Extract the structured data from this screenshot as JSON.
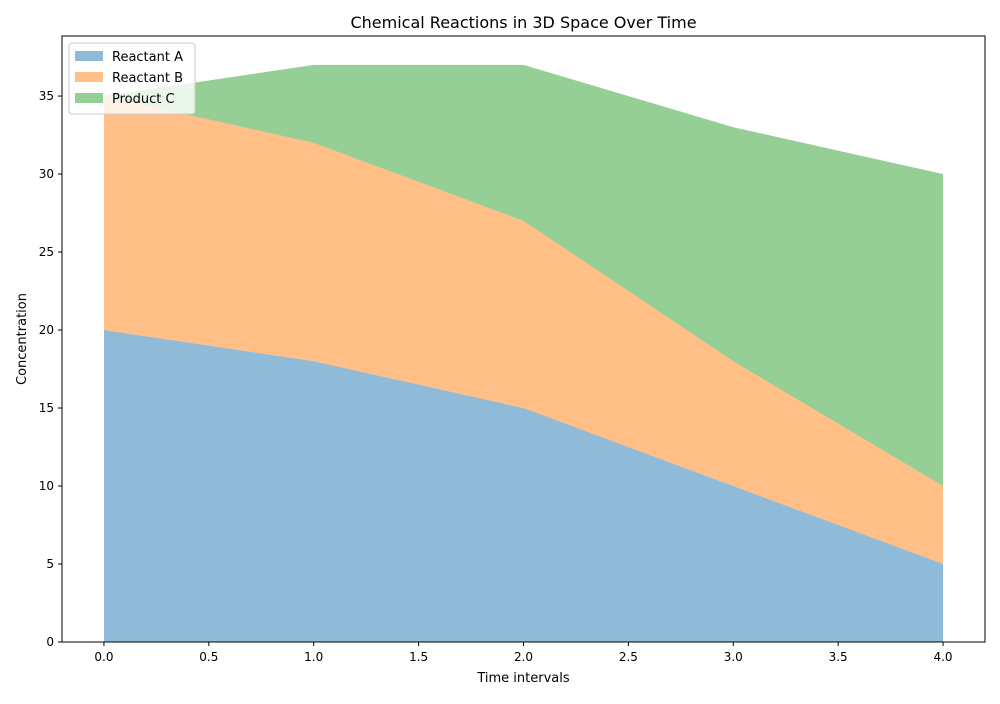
{
  "chart_data": {
    "type": "area",
    "stacked": true,
    "title": "Chemical Reactions in 3D Space Over Time",
    "xlabel": "Time intervals",
    "ylabel": "Concentration",
    "x": [
      0,
      1,
      2,
      3,
      4
    ],
    "series": [
      {
        "name": "Reactant A",
        "values": [
          20,
          18,
          15,
          10,
          5
        ],
        "color": "#1f77b4"
      },
      {
        "name": "Reactant B",
        "values": [
          15,
          14,
          12,
          8,
          5
        ],
        "color": "#ff7f0e"
      },
      {
        "name": "Product C",
        "values": [
          0,
          5,
          10,
          15,
          20
        ],
        "color": "#2ca02c"
      }
    ],
    "xlim": [
      -0.2,
      4.2
    ],
    "ylim": [
      0,
      38.85
    ],
    "xticks": [
      0,
      0.5,
      1,
      1.5,
      2,
      2.5,
      3,
      3.5,
      4
    ],
    "xtick_labels": [
      "0.0",
      "0.5",
      "1.0",
      "1.5",
      "2.0",
      "2.5",
      "3.0",
      "3.5",
      "4.0"
    ],
    "yticks": [
      0,
      5,
      10,
      15,
      20,
      25,
      30,
      35
    ],
    "ytick_labels": [
      "0",
      "5",
      "10",
      "15",
      "20",
      "25",
      "30",
      "35"
    ],
    "alpha": 0.5,
    "grid": false,
    "legend_position": "upper-left"
  }
}
